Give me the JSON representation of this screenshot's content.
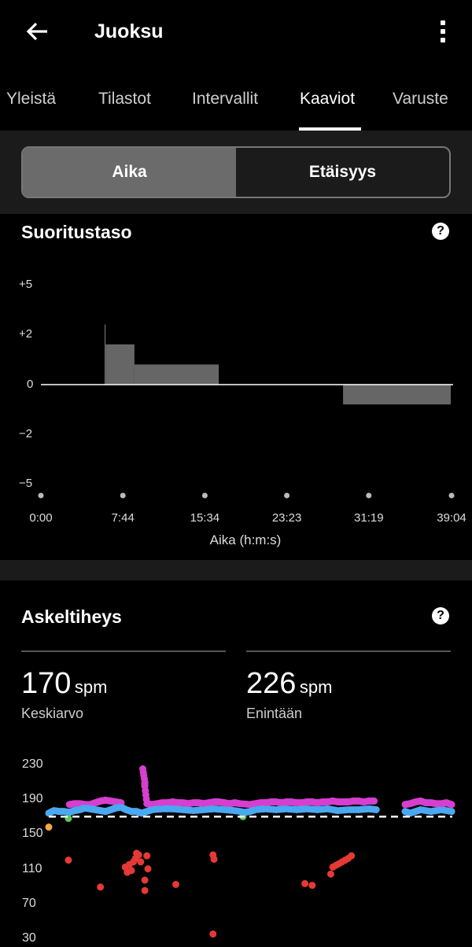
{
  "header": {
    "title": "Juoksu",
    "back_icon": "arrow-left-icon",
    "menu_icon": "more-vertical-icon"
  },
  "tabs": [
    {
      "label": "Yleistä"
    },
    {
      "label": "Tilastot"
    },
    {
      "label": "Intervallit"
    },
    {
      "label": "Kaaviot",
      "active": true
    },
    {
      "label": "Varuste"
    }
  ],
  "segmented": {
    "options": [
      "Aika",
      "Etäisyys"
    ],
    "selected": "Aika"
  },
  "performance": {
    "title": "Suoritustaso",
    "help_icon": "question-icon"
  },
  "cadence": {
    "title": "Askeltiheys",
    "help_icon": "question-icon",
    "avg_value": "170",
    "avg_unit": "spm",
    "avg_label": "Keskiarvo",
    "max_value": "226",
    "max_unit": "spm",
    "max_label": "Enintään"
  },
  "chart_data": [
    {
      "type": "bar",
      "title": "Suoritustaso",
      "xlabel": "Aika (h:m:s)",
      "ylabel": "",
      "y_ticks": [
        "+5",
        "+2",
        "0",
        "−2",
        "−5"
      ],
      "x_ticks": [
        "0:00",
        "7:44",
        "15:34",
        "23:23",
        "31:19",
        "39:04"
      ],
      "x_range_seconds": [
        0,
        2344
      ],
      "segments": [
        {
          "start": "6:04",
          "end": "6:10",
          "value": 2.6
        },
        {
          "start": "6:10",
          "end": "8:55",
          "value": 1.6
        },
        {
          "start": "8:55",
          "end": "16:57",
          "value": 0.8
        },
        {
          "start": "28:48",
          "end": "39:04",
          "value": -0.8
        }
      ],
      "bar_color": "#666666",
      "zero_line_color": "#ffffff"
    },
    {
      "type": "scatter",
      "title": "Askeltiheys",
      "y_ticks": [
        230,
        190,
        150,
        110,
        70,
        30
      ],
      "ylim": [
        30,
        230
      ],
      "x_range_minutes": [
        0,
        39.07
      ],
      "average_line": 170,
      "average_line_style": "dashed white",
      "series": [
        {
          "color": "#d63fd0",
          "t": [
            2,
            2.5,
            3,
            3.5,
            4,
            4.5,
            5,
            5.5,
            6,
            6.5,
            7,
            9.1,
            9.3,
            9.3,
            9.5,
            10,
            10.5,
            11,
            11.5,
            12,
            12.5,
            13,
            13.5,
            14,
            14.5,
            15,
            15.5,
            16,
            16.5,
            17,
            17.5,
            18,
            18.5,
            19.5,
            20,
            20.5,
            21,
            21.5,
            22,
            22.5,
            23,
            23.5,
            24,
            24.5,
            25,
            25.5,
            26,
            26.5,
            27,
            27.5,
            28,
            28.5,
            29,
            29.5,
            30,
            30.5,
            31,
            31.5,
            34.5,
            35,
            35.5,
            36,
            36.5,
            37,
            37.5,
            38,
            38.5,
            39
          ],
          "v": [
            184,
            185,
            185,
            184,
            184,
            186,
            188,
            189,
            188,
            187,
            186,
            225,
            210,
            205,
            185,
            184,
            185,
            186,
            186,
            187,
            186,
            186,
            185,
            186,
            186,
            185,
            186,
            187,
            187,
            186,
            185,
            186,
            185,
            184,
            185,
            186,
            186,
            187,
            187,
            186,
            187,
            187,
            186,
            186,
            187,
            187,
            186,
            187,
            187,
            188,
            187,
            187,
            187,
            188,
            188,
            187,
            188,
            188,
            184,
            185,
            187,
            188,
            186,
            186,
            185,
            185,
            186,
            184
          ]
        },
        {
          "color": "#4aa8f0",
          "t": [
            0,
            0.5,
            1,
            1.5,
            2,
            2.5,
            3,
            3.5,
            4,
            4.5,
            5,
            5.5,
            6,
            6.5,
            7,
            7.5,
            8,
            8.5,
            9,
            9.5,
            10,
            11,
            12,
            13,
            14,
            15,
            16,
            17,
            18,
            19,
            19.5,
            20,
            21,
            22,
            23,
            24,
            25,
            26,
            27,
            28,
            29,
            30,
            31,
            31.7,
            34.5,
            35,
            36,
            37,
            38,
            39
          ],
          "v": [
            174,
            177,
            176,
            176,
            175,
            177,
            178,
            180,
            179,
            178,
            177,
            176,
            178,
            180,
            181,
            178,
            176,
            176,
            174,
            176,
            178,
            179,
            179,
            178,
            177,
            178,
            179,
            178,
            177,
            175,
            176,
            178,
            179,
            178,
            179,
            178,
            179,
            178,
            179,
            177,
            178,
            178,
            179,
            178,
            176,
            174,
            178,
            176,
            178,
            176
          ]
        },
        {
          "color": "#e53935",
          "t": [
            1.9,
            5.0,
            7.4,
            7.6,
            7.8,
            8.0,
            8.2,
            8.4,
            8.5,
            8.7,
            8.9,
            9.3,
            9.3,
            9.5,
            9.6,
            12.3,
            15.9,
            16.0,
            15.9,
            24.8,
            25.5,
            27.3,
            27.5,
            27.8,
            28.1,
            28.4,
            28.7,
            29.0,
            29.3
          ],
          "v": [
            120,
            89,
            112,
            106,
            115,
            108,
            118,
            122,
            128,
            126,
            118,
            97,
            85,
            125,
            110,
            92,
            126,
            121,
            35,
            93,
            91,
            104,
            112,
            114,
            116,
            118,
            120,
            122,
            125
          ]
        },
        {
          "color": "#5cc85c",
          "t": [
            1.9,
            18.8
          ],
          "v": [
            168,
            170
          ]
        },
        {
          "color": "#f5a742",
          "t": [
            0
          ],
          "v": [
            158
          ]
        }
      ]
    }
  ]
}
